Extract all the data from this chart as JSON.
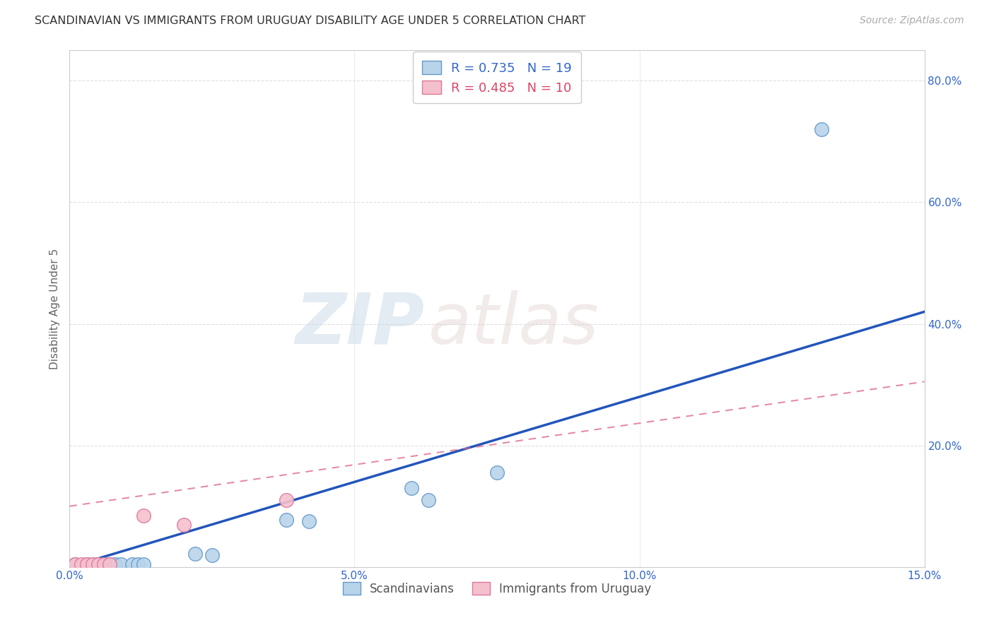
{
  "title": "SCANDINAVIAN VS IMMIGRANTS FROM URUGUAY DISABILITY AGE UNDER 5 CORRELATION CHART",
  "source": "Source: ZipAtlas.com",
  "ylabel": "Disability Age Under 5",
  "xlabel": "",
  "xlim": [
    0.0,
    0.15
  ],
  "ylim": [
    0.0,
    0.85
  ],
  "yticks": [
    0.0,
    0.2,
    0.4,
    0.6,
    0.8
  ],
  "xticks": [
    0.0,
    0.05,
    0.1,
    0.15
  ],
  "xtick_labels": [
    "0.0%",
    "5.0%",
    "10.0%",
    "15.0%"
  ],
  "ytick_labels_right": [
    "",
    "20.0%",
    "40.0%",
    "60.0%",
    "80.0%"
  ],
  "scandinavian_x": [
    0.001,
    0.003,
    0.004,
    0.005,
    0.006,
    0.007,
    0.008,
    0.009,
    0.011,
    0.012,
    0.013,
    0.022,
    0.025,
    0.038,
    0.042,
    0.06,
    0.063,
    0.075,
    0.132
  ],
  "scandinavian_y": [
    0.004,
    0.004,
    0.004,
    0.004,
    0.004,
    0.004,
    0.004,
    0.004,
    0.004,
    0.004,
    0.004,
    0.022,
    0.02,
    0.078,
    0.075,
    0.13,
    0.11,
    0.155,
    0.72
  ],
  "uruguay_x": [
    0.001,
    0.002,
    0.003,
    0.004,
    0.005,
    0.006,
    0.007,
    0.013,
    0.02,
    0.038
  ],
  "uruguay_y": [
    0.004,
    0.004,
    0.004,
    0.004,
    0.004,
    0.004,
    0.004,
    0.085,
    0.07,
    0.11
  ],
  "scand_color": "#b8d4ea",
  "scand_edge_color": "#6699cc",
  "uruguay_color": "#f5c0ce",
  "uruguay_edge_color": "#dd7799",
  "scand_R": 0.735,
  "scand_N": 19,
  "uruguay_R": 0.485,
  "uruguay_N": 10,
  "trend_scand_x0": 0.0,
  "trend_scand_y0": 0.0,
  "trend_scand_x1": 0.15,
  "trend_scand_y1": 0.42,
  "trend_uruguay_x0": 0.0,
  "trend_uruguay_y0": 0.1,
  "trend_uruguay_x1": 0.15,
  "trend_uruguay_y1": 0.305,
  "trend_scand_color": "#2255bb",
  "trend_uruguay_color": "#dd6688",
  "watermark_zip": "ZIP",
  "watermark_atlas": "atlas",
  "background_color": "#ffffff",
  "grid_color": "#e0e0e0"
}
